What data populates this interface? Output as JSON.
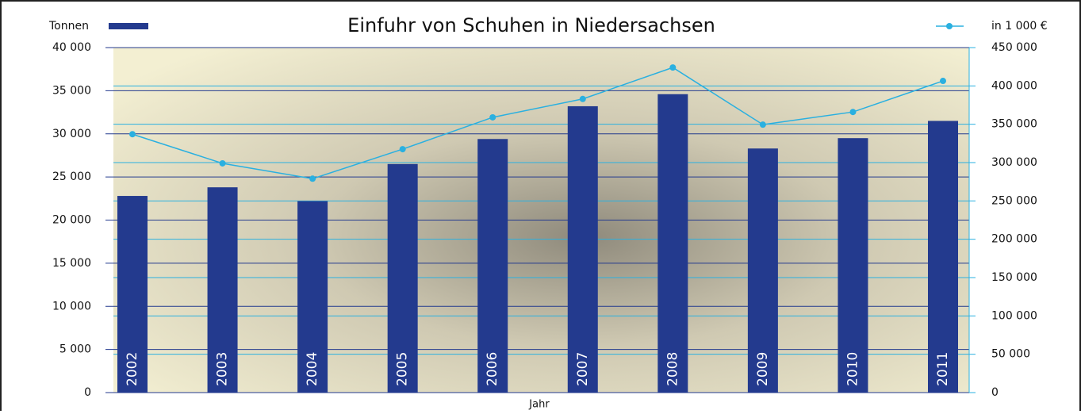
{
  "chart_data": {
    "type": "bar-line",
    "title": "Einfuhr von Schuhen in Niedersachsen",
    "y_label": "Tonnen",
    "y2_label": "in 1 000 €",
    "x_label": "Jahr",
    "categories": [
      "2002",
      "2003",
      "2004",
      "2005",
      "2006",
      "2007",
      "2008",
      "2009",
      "2010",
      "2011"
    ],
    "series": [
      {
        "name": "Tonnen",
        "type": "bar",
        "color": "#233a8e",
        "values": [
          22800,
          23800,
          22200,
          26500,
          29400,
          33200,
          34600,
          28300,
          29500,
          31500
        ]
      },
      {
        "name": "in 1 000 €",
        "type": "line",
        "axis": "y2",
        "color": "#2ab0e0",
        "values": [
          337000,
          299000,
          279000,
          317500,
          359000,
          383000,
          424000,
          349500,
          366000,
          406500
        ]
      }
    ],
    "ylim": [
      0,
      40000
    ],
    "yticks": [
      0,
      {
        "value": 5000,
        "label": "5 000"
      },
      {
        "value": 10000,
        "label": "10 000"
      },
      {
        "value": 15000,
        "label": "15 000"
      },
      {
        "value": 20000,
        "label": "20 000"
      },
      {
        "value": 25000,
        "label": "25 000"
      },
      {
        "value": 30000,
        "label": "30 000"
      },
      {
        "value": 35000,
        "label": "35 000"
      },
      {
        "value": 40000,
        "label": "40 000"
      }
    ],
    "y2lim": [
      0,
      450000
    ],
    "y2ticks": [
      0,
      {
        "value": 50000,
        "label": "50 000"
      },
      {
        "value": 100000,
        "label": "100 000"
      },
      {
        "value": 150000,
        "label": "150 000"
      },
      {
        "value": 200000,
        "label": "200 000"
      },
      {
        "value": 250000,
        "label": "250 000"
      },
      {
        "value": 300000,
        "label": "300 000"
      },
      {
        "value": 350000,
        "label": "350 000"
      },
      {
        "value": 400000,
        "label": "400 000"
      },
      {
        "value": 450000,
        "label": "450 000"
      }
    ],
    "grid": true
  }
}
